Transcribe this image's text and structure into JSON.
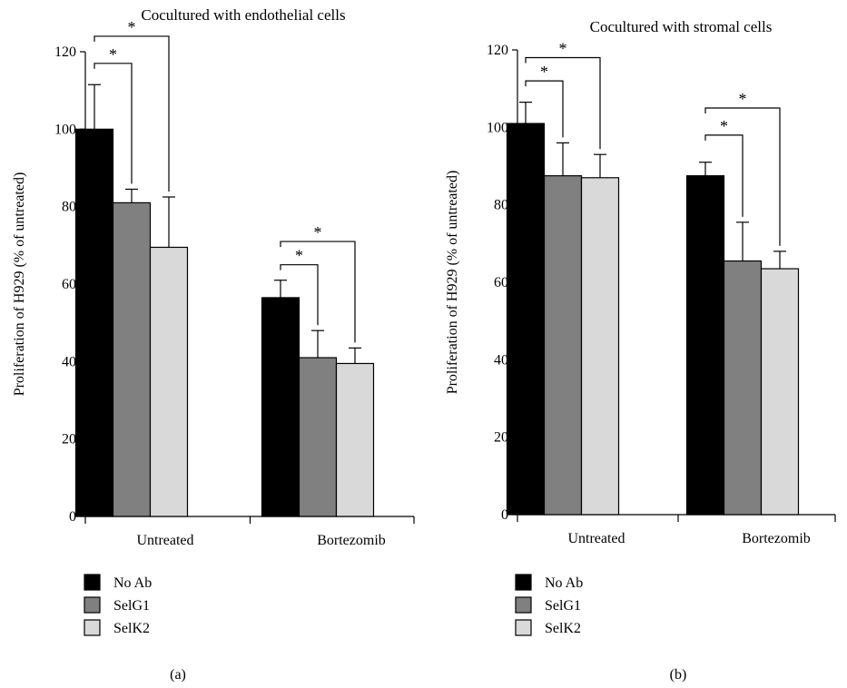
{
  "chart_data": [
    {
      "type": "bar",
      "title": "Cocultured with endothelial cells",
      "ylabel": "Proliferation of H929 (% of untreated)",
      "xlabel": "",
      "ylim": [
        0,
        120
      ],
      "yticks": [
        0,
        20,
        40,
        60,
        80,
        100,
        120
      ],
      "categories": [
        "Untreated",
        "Bortezomib"
      ],
      "series": [
        {
          "name": "No Ab",
          "color": "#000000",
          "values": [
            100,
            56.5
          ],
          "errors": [
            11.5,
            4.5
          ]
        },
        {
          "name": "SelG1",
          "color": "#808080",
          "values": [
            81,
            41
          ],
          "errors": [
            3.5,
            7
          ]
        },
        {
          "name": "SelK2",
          "color": "#d9d9d9",
          "values": [
            69.5,
            39.5
          ],
          "errors": [
            13,
            4
          ]
        }
      ],
      "significance": [
        {
          "category": 0,
          "from_series": 0,
          "to_series": 1,
          "label": "*",
          "level": 117
        },
        {
          "category": 0,
          "from_series": 0,
          "to_series": 2,
          "label": "*",
          "level": 124
        },
        {
          "category": 1,
          "from_series": 0,
          "to_series": 1,
          "label": "*",
          "level": 65
        },
        {
          "category": 1,
          "from_series": 0,
          "to_series": 2,
          "label": "*",
          "level": 71
        }
      ],
      "legend_position": "bottom-left",
      "panel_label": "(a)"
    },
    {
      "type": "bar",
      "title": "Cocultured with stromal cells",
      "ylabel": "Proliferation of H929 (% of untreated)",
      "xlabel": "",
      "ylim": [
        0,
        120
      ],
      "yticks": [
        0,
        20,
        40,
        60,
        80,
        100,
        120
      ],
      "categories": [
        "Untreated",
        "Bortezomib"
      ],
      "series": [
        {
          "name": "No Ab",
          "color": "#000000",
          "values": [
            101,
            87.5
          ],
          "errors": [
            5.5,
            3.5
          ]
        },
        {
          "name": "SelG1",
          "color": "#808080",
          "values": [
            87.5,
            65.5
          ],
          "errors": [
            8.5,
            10
          ]
        },
        {
          "name": "SelK2",
          "color": "#d9d9d9",
          "values": [
            87,
            63.5
          ],
          "errors": [
            6,
            4.5
          ]
        }
      ],
      "significance": [
        {
          "category": 0,
          "from_series": 0,
          "to_series": 1,
          "label": "*",
          "level": 112
        },
        {
          "category": 0,
          "from_series": 0,
          "to_series": 2,
          "label": "*",
          "level": 118
        },
        {
          "category": 1,
          "from_series": 0,
          "to_series": 1,
          "label": "*",
          "level": 98
        },
        {
          "category": 1,
          "from_series": 0,
          "to_series": 2,
          "label": "*",
          "level": 105
        }
      ],
      "legend_position": "bottom-left",
      "panel_label": "(b)"
    }
  ]
}
